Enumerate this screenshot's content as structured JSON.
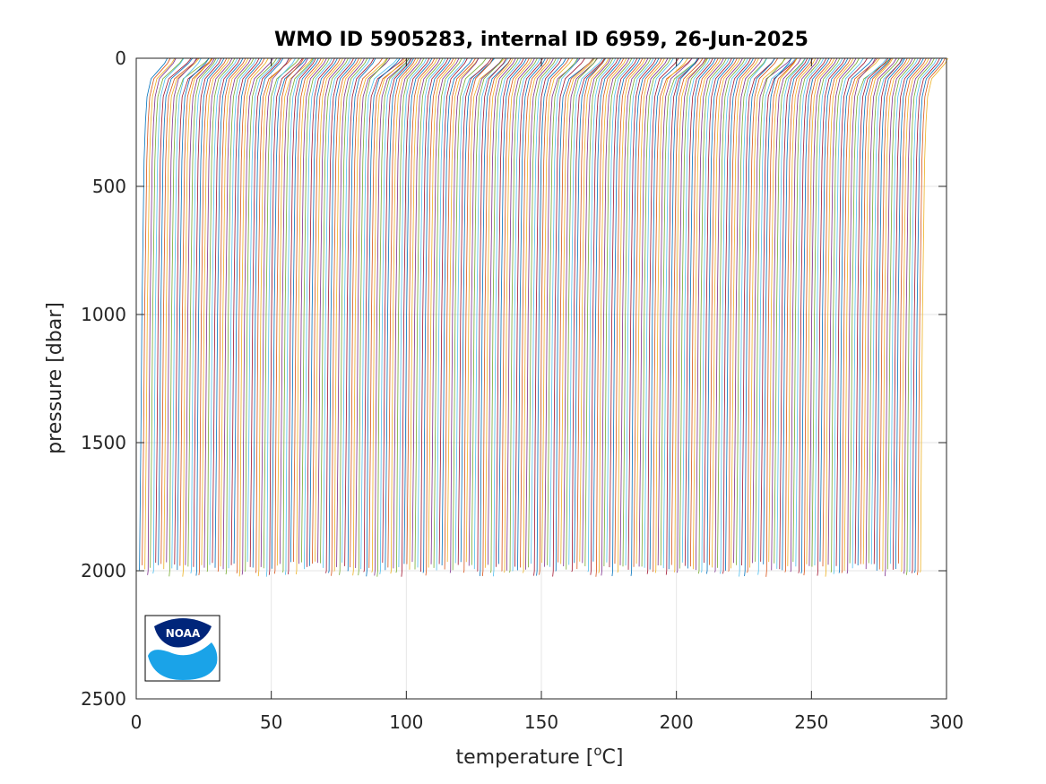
{
  "chart_data": {
    "type": "line",
    "title": "WMO ID 5905283, internal ID 6959, 26-Jun-2025",
    "xlabel_main": "temperature [",
    "xlabel_sup": "o",
    "xlabel_end": "C]",
    "ylabel": "pressure [dbar]",
    "xlim": [
      0,
      300
    ],
    "ylim": [
      0,
      2500
    ],
    "y_reversed": true,
    "grid": true,
    "xticks": [
      0,
      50,
      100,
      150,
      200,
      250,
      300
    ],
    "yticks": [
      0,
      500,
      1000,
      1500,
      2000,
      2500
    ],
    "series_count": 290,
    "series_offset_step": 1.0,
    "profile_shape": {
      "pressure": [
        0,
        20,
        50,
        80,
        150,
        250,
        400,
        700,
        1000,
        1500,
        2000
      ],
      "temperature": [
        11.5,
        10.5,
        8.0,
        5.5,
        4.0,
        3.4,
        2.9,
        2.5,
        2.1,
        1.7,
        1.4
      ]
    },
    "max_pressure": 2000,
    "colors": [
      "#0072BD",
      "#D95319",
      "#EDB120",
      "#7E2F8E",
      "#77AC30",
      "#4DBEEE",
      "#A2142F"
    ]
  },
  "logo": {
    "name": "noaa-logo",
    "text": "NOAA",
    "dark": "#00257a",
    "light": "#1aa3e8"
  }
}
